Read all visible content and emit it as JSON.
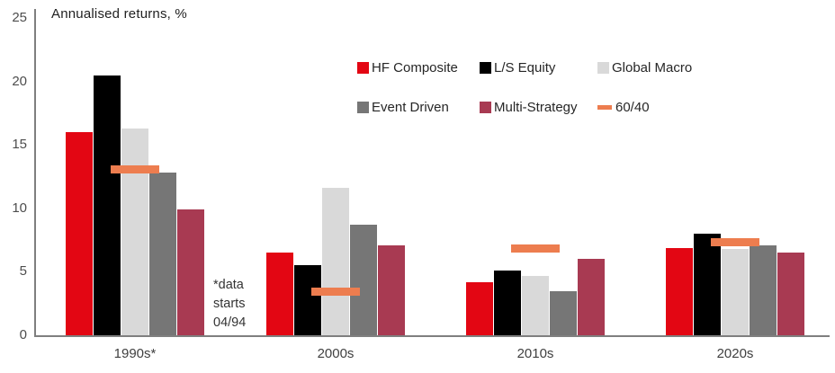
{
  "title": "Annualised returns, %",
  "annotation": "*data\nstarts\n04/94",
  "axis": {
    "y_ticks": [
      0,
      5,
      10,
      15,
      20,
      25
    ],
    "y_max": 25
  },
  "colors": {
    "hf_composite": "#e30613",
    "ls_equity": "#000000",
    "global_macro": "#d9d9d9",
    "event_driven": "#767676",
    "multi_strategy": "#a83a52",
    "sixty_forty": "#ed7d4f",
    "axis_line": "#7f7f7f"
  },
  "legend": {
    "rows": [
      [
        {
          "label": "HF Composite",
          "color": "#e30613",
          "marker": "square"
        },
        {
          "label": "L/S Equity",
          "color": "#000000",
          "marker": "square"
        },
        {
          "label": "Global Macro",
          "color": "#d9d9d9",
          "marker": "square"
        }
      ],
      [
        {
          "label": "Event Driven",
          "color": "#767676",
          "marker": "square"
        },
        {
          "label": "Multi-Strategy",
          "color": "#a83a52",
          "marker": "square"
        },
        {
          "label": "60/40",
          "color": "#ed7d4f",
          "marker": "dash"
        }
      ]
    ]
  },
  "chart_data": {
    "type": "bar",
    "title": "Annualised returns, %",
    "categories": [
      "1990s*",
      "2000s",
      "2010s",
      "2020s"
    ],
    "series": [
      {
        "name": "HF Composite",
        "color": "#e30613",
        "values": [
          16.0,
          6.5,
          4.2,
          6.9
        ]
      },
      {
        "name": "L/S Equity",
        "color": "#000000",
        "values": [
          20.5,
          5.5,
          5.1,
          8.0
        ]
      },
      {
        "name": "Global Macro",
        "color": "#d9d9d9",
        "values": [
          16.3,
          11.6,
          4.7,
          6.8
        ]
      },
      {
        "name": "Event Driven",
        "color": "#767676",
        "values": [
          12.8,
          8.7,
          3.5,
          7.1
        ]
      },
      {
        "name": "Multi-Strategy",
        "color": "#a83a52",
        "values": [
          9.9,
          7.1,
          6.0,
          6.5
        ]
      }
    ],
    "overlay_series": {
      "name": "60/40",
      "color": "#ed7d4f",
      "marker": "dash",
      "values": [
        13.1,
        3.4,
        6.8,
        7.3
      ]
    },
    "ylabel": "Annualised returns, %",
    "xlabel": "",
    "ylim": [
      0,
      25
    ],
    "grid": false,
    "legend_position": "top-right",
    "footnote": "*data starts 04/94"
  }
}
